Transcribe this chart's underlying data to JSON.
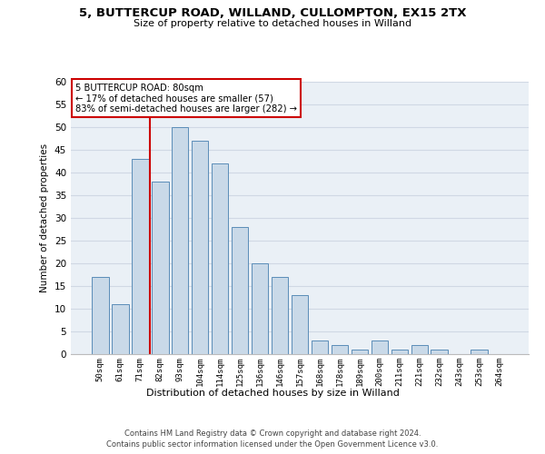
{
  "title1": "5, BUTTERCUP ROAD, WILLAND, CULLOMPTON, EX15 2TX",
  "title2": "Size of property relative to detached houses in Willand",
  "xlabel": "Distribution of detached houses by size in Willand",
  "ylabel": "Number of detached properties",
  "categories": [
    "50sqm",
    "61sqm",
    "71sqm",
    "82sqm",
    "93sqm",
    "104sqm",
    "114sqm",
    "125sqm",
    "136sqm",
    "146sqm",
    "157sqm",
    "168sqm",
    "178sqm",
    "189sqm",
    "200sqm",
    "211sqm",
    "221sqm",
    "232sqm",
    "243sqm",
    "253sqm",
    "264sqm"
  ],
  "values": [
    17,
    11,
    43,
    38,
    50,
    47,
    42,
    28,
    20,
    17,
    13,
    3,
    2,
    1,
    3,
    1,
    2,
    1,
    0,
    1,
    0
  ],
  "bar_color": "#c9d9e8",
  "bar_edge_color": "#5b8db8",
  "property_bin_index": 3,
  "annotation_title": "5 BUTTERCUP ROAD: 80sqm",
  "annotation_line1": "← 17% of detached houses are smaller (57)",
  "annotation_line2": "83% of semi-detached houses are larger (282) →",
  "vline_color": "#cc0000",
  "annotation_box_color": "#ffffff",
  "annotation_box_edge": "#cc0000",
  "footnote1": "Contains HM Land Registry data © Crown copyright and database right 2024.",
  "footnote2": "Contains public sector information licensed under the Open Government Licence v3.0.",
  "ylim": [
    0,
    60
  ],
  "yticks": [
    0,
    5,
    10,
    15,
    20,
    25,
    30,
    35,
    40,
    45,
    50,
    55,
    60
  ],
  "grid_color": "#d0d8e4",
  "bg_color": "#eaf0f6"
}
